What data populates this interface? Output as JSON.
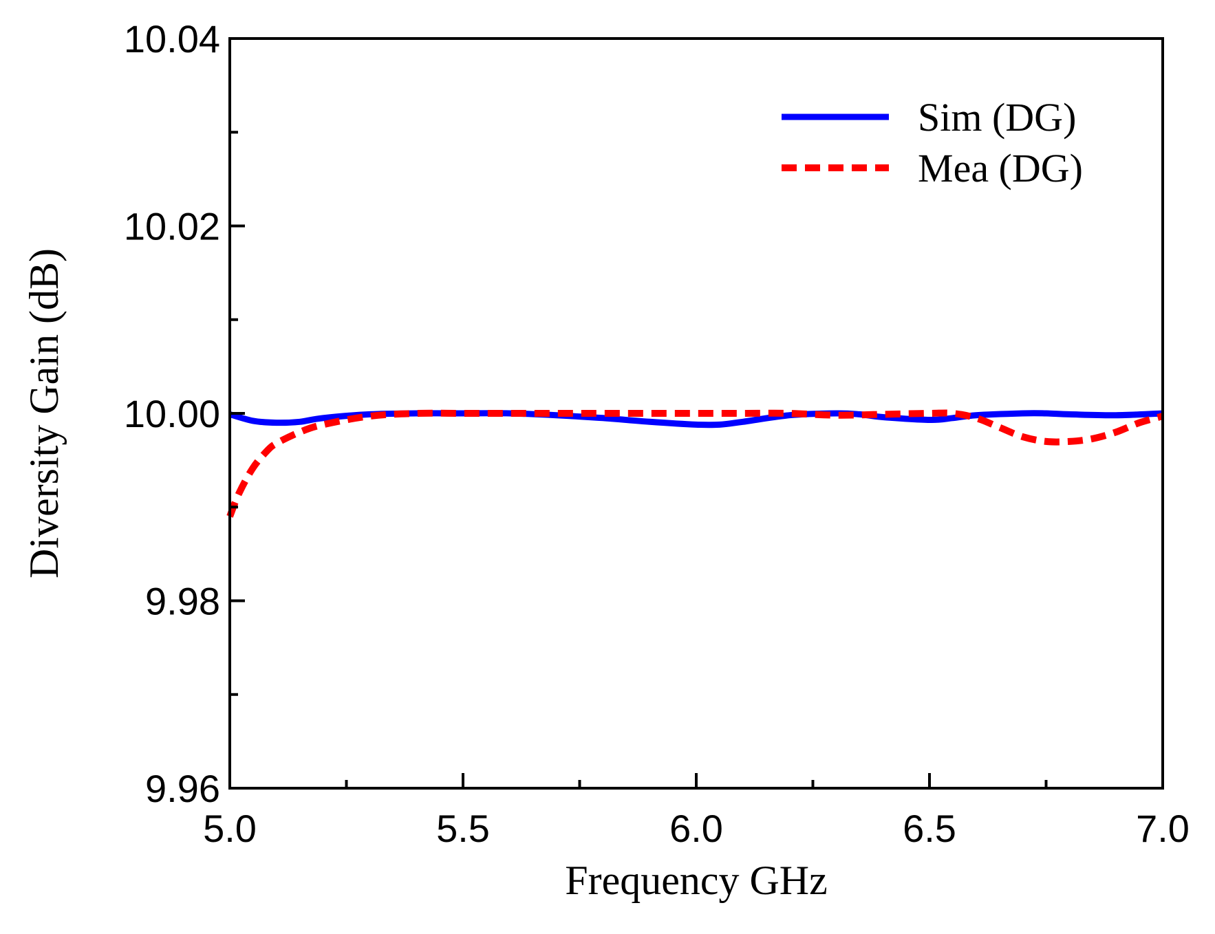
{
  "chart_data": {
    "type": "line",
    "title": "",
    "xlabel": "Frequency GHz",
    "ylabel": "Diversity Gain (dB)",
    "xlim": [
      5.0,
      7.0
    ],
    "ylim": [
      9.96,
      10.04
    ],
    "x_ticks": [
      5.0,
      5.5,
      6.0,
      6.5,
      7.0
    ],
    "x_tick_labels": [
      "5.0",
      "5.5",
      "6.0",
      "6.5",
      "7.0"
    ],
    "y_ticks": [
      9.96,
      9.98,
      10.0,
      10.02,
      10.04
    ],
    "y_tick_labels": [
      "9.96",
      "9.98",
      "10.00",
      "10.02",
      "10.04"
    ],
    "grid": false,
    "legend_position": "top-right",
    "colors": {
      "sim": "#0000ff",
      "mea": "#ff0000"
    },
    "series": [
      {
        "name": "Sim (DG)",
        "style": "solid",
        "x": [
          5.0,
          5.05,
          5.1,
          5.15,
          5.2,
          5.3,
          5.4,
          5.5,
          5.6,
          5.7,
          5.8,
          5.9,
          6.0,
          6.05,
          6.1,
          6.2,
          6.3,
          6.35,
          6.4,
          6.5,
          6.55,
          6.6,
          6.7,
          6.75,
          6.8,
          6.9,
          7.0
        ],
        "y": [
          9.9999,
          9.9992,
          9.999,
          9.9991,
          9.9995,
          9.9999,
          10.0,
          10.0,
          10.0,
          9.9998,
          9.9995,
          9.9991,
          9.9988,
          9.9988,
          9.9991,
          9.9998,
          10.0,
          9.9999,
          9.9996,
          9.9993,
          9.9995,
          9.9998,
          10.0,
          10.0,
          9.9999,
          9.9998,
          10.0
        ]
      },
      {
        "name": "Mea (DG)",
        "style": "dashed",
        "x": [
          5.0,
          5.02,
          5.05,
          5.08,
          5.1,
          5.15,
          5.2,
          5.3,
          5.4,
          5.5,
          5.6,
          5.7,
          5.8,
          5.9,
          6.0,
          6.1,
          6.2,
          6.3,
          6.4,
          6.5,
          6.55,
          6.6,
          6.65,
          6.7,
          6.75,
          6.8,
          6.85,
          6.9,
          6.95,
          7.0
        ],
        "y": [
          9.989,
          9.9915,
          9.9942,
          9.996,
          9.9968,
          9.998,
          9.9988,
          9.9997,
          10.0,
          10.0,
          10.0,
          10.0,
          10.0,
          10.0,
          10.0,
          10.0,
          10.0,
          9.9998,
          9.9999,
          10.0,
          10.0,
          9.9995,
          9.9985,
          9.9975,
          9.997,
          9.997,
          9.9973,
          9.998,
          9.999,
          9.9997
        ]
      }
    ]
  }
}
